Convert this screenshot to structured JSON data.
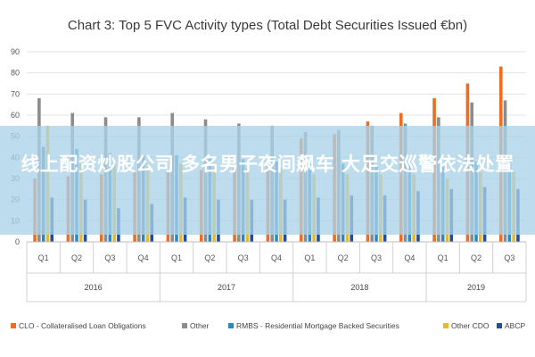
{
  "chart_data": {
    "type": "bar",
    "title": "Chart 3: Top 5 FVC Activity types (Total Debt Securities Issued €bn)",
    "categories": [
      "Q1",
      "Q2",
      "Q3",
      "Q4",
      "Q1",
      "Q2",
      "Q3",
      "Q4",
      "Q1",
      "Q2",
      "Q3",
      "Q4",
      "Q1",
      "Q2",
      "Q3"
    ],
    "groups": [
      {
        "label": "2016",
        "count": 4
      },
      {
        "label": "2017",
        "count": 4
      },
      {
        "label": "2018",
        "count": 4
      },
      {
        "label": "2019",
        "count": 3
      }
    ],
    "ylim": [
      0,
      90
    ],
    "yticks": [
      0,
      10,
      20,
      30,
      40,
      50,
      60,
      70,
      80,
      90
    ],
    "grid": true,
    "legend_position": "bottom",
    "series": [
      {
        "name": "CLO - Collateralised Loan Obligations",
        "color": "#f26b21",
        "values": [
          30,
          31,
          32,
          33,
          33,
          34,
          35,
          36,
          49,
          51,
          57,
          61,
          68,
          75,
          83
        ]
      },
      {
        "name": "Other",
        "color": "#8c8c8c",
        "values": [
          68,
          61,
          59,
          59,
          61,
          58,
          56,
          55,
          52,
          53,
          55,
          56,
          59,
          66,
          67
        ]
      },
      {
        "name": "RMBS - Residential Mortgage Backed Securities",
        "color": "#2a88c4",
        "values": [
          45,
          44,
          42,
          41,
          41,
          40,
          39,
          38,
          37,
          37,
          36,
          36,
          37,
          38,
          40
        ]
      },
      {
        "name": "Other CDO",
        "color": "#e8b92a",
        "values": [
          55,
          38,
          37,
          37,
          37,
          36,
          35,
          35,
          32,
          32,
          32,
          32,
          30,
          33,
          33
        ]
      },
      {
        "name": "ABCP",
        "color": "#1f4e9a",
        "values": [
          21,
          20,
          16,
          18,
          21,
          20,
          20,
          20,
          21,
          22,
          22,
          24,
          25,
          26,
          25
        ]
      }
    ]
  },
  "overlay": {
    "text": "线上配资炒股公司 多名男子夜间飙车 大足交巡警依法处置"
  }
}
